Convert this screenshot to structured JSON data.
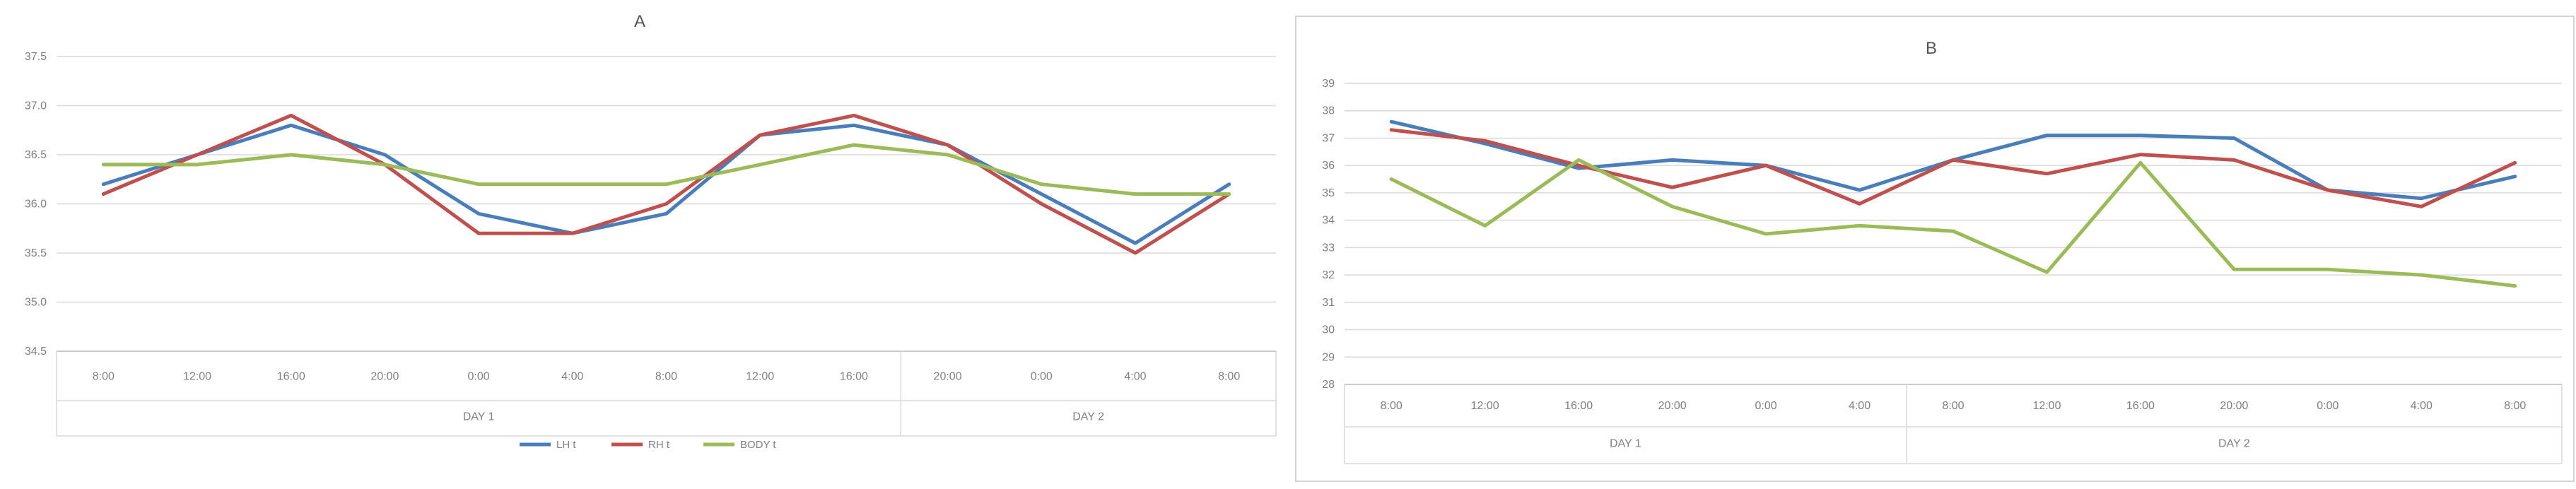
{
  "colors": {
    "LH": "#4a7ebb",
    "RH": "#c0504d",
    "BODY": "#9bbb59",
    "grid": "#d9d9d9",
    "axis": "#bfbfbf"
  },
  "chart_data": [
    {
      "type": "line",
      "title": "A",
      "categories": [
        "8:00",
        "12:00",
        "16:00",
        "20:00",
        "0:00",
        "4:00",
        "8:00",
        "12:00",
        "16:00",
        "20:00",
        "0:00",
        "4:00",
        "8:00"
      ],
      "groups": [
        {
          "label": "DAY 1",
          "span": [
            0,
            8
          ]
        },
        {
          "label": "DAY 2",
          "span": [
            9,
            12
          ]
        }
      ],
      "ylim": [
        34.5,
        37.5
      ],
      "yticks": [
        "34.5",
        "35.0",
        "35.5",
        "36.0",
        "36.5",
        "37.0",
        "37.5"
      ],
      "legend": "bottom",
      "series": [
        {
          "name": "LH t",
          "color_key": "LH",
          "values": [
            36.2,
            36.5,
            36.8,
            36.5,
            35.9,
            35.7,
            35.9,
            36.7,
            36.8,
            36.6,
            36.1,
            35.6,
            36.2
          ]
        },
        {
          "name": "RH t",
          "color_key": "RH",
          "values": [
            36.1,
            36.5,
            36.9,
            36.4,
            35.7,
            35.7,
            36.0,
            36.7,
            36.9,
            36.6,
            36.0,
            35.5,
            36.1
          ]
        },
        {
          "name": "BODY t",
          "color_key": "BODY",
          "values": [
            36.4,
            36.4,
            36.5,
            36.4,
            36.2,
            36.2,
            36.2,
            36.4,
            36.6,
            36.5,
            36.2,
            36.1,
            36.1
          ]
        }
      ]
    },
    {
      "type": "line",
      "title": "B",
      "categories": [
        "8:00",
        "12:00",
        "16:00",
        "20:00",
        "0:00",
        "4:00",
        "8:00",
        "12:00",
        "16:00",
        "20:00",
        "0:00",
        "4:00",
        "8:00"
      ],
      "groups": [
        {
          "label": "DAY 1",
          "span": [
            0,
            5
          ]
        },
        {
          "label": "DAY 2",
          "span": [
            6,
            12
          ]
        }
      ],
      "ylim": [
        28,
        39
      ],
      "yticks": [
        "28",
        "29",
        "30",
        "31",
        "32",
        "33",
        "34",
        "35",
        "36",
        "37",
        "38",
        "39"
      ],
      "legend": "none",
      "series": [
        {
          "color_key": "LH",
          "values": [
            37.6,
            36.8,
            35.9,
            36.2,
            36.0,
            35.1,
            36.2,
            37.1,
            37.1,
            37.0,
            35.1,
            34.8,
            35.6
          ]
        },
        {
          "color_key": "RH",
          "values": [
            37.3,
            36.9,
            36.0,
            35.2,
            36.0,
            34.6,
            36.2,
            35.7,
            36.4,
            36.2,
            35.1,
            34.5,
            36.1
          ]
        },
        {
          "color_key": "BODY",
          "values": [
            35.5,
            33.8,
            36.2,
            34.5,
            33.5,
            33.8,
            33.6,
            32.1,
            36.1,
            32.2,
            32.2,
            32.0,
            31.6
          ]
        }
      ]
    }
  ]
}
